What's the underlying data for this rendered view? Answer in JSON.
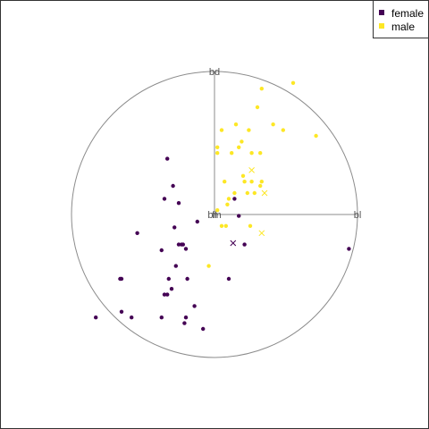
{
  "chart_data": {
    "type": "scatter",
    "subtype": "tour-projection",
    "title": "",
    "legend": {
      "placement": "top-right",
      "entries": [
        {
          "label": "female",
          "color": "#440154"
        },
        {
          "label": "male",
          "color": "#FDE725"
        }
      ]
    },
    "axes": [
      {
        "label": "bd",
        "direction": [
          0,
          1
        ]
      },
      {
        "label": "bl",
        "direction": [
          1,
          0
        ]
      },
      {
        "label": "fl",
        "direction": [
          0,
          0
        ]
      },
      {
        "label": "bm",
        "direction": [
          0,
          0
        ]
      }
    ],
    "circle": true,
    "xlim": [
      -1,
      1
    ],
    "ylim": [
      -1,
      1
    ],
    "series": [
      {
        "name": "female",
        "color": "#440154",
        "points": [
          [
            -0.33,
            0.39
          ],
          [
            -0.29,
            0.2
          ],
          [
            -0.35,
            0.11
          ],
          [
            -0.25,
            0.08
          ],
          [
            0.14,
            0.11
          ],
          [
            0.17,
            -0.01
          ],
          [
            -0.12,
            -0.05
          ],
          [
            -0.28,
            -0.09
          ],
          [
            -0.54,
            -0.13
          ],
          [
            -0.22,
            -0.21
          ],
          [
            -0.23,
            -0.21
          ],
          [
            -0.25,
            -0.21
          ],
          [
            -0.2,
            -0.24
          ],
          [
            -0.37,
            -0.25
          ],
          [
            0.21,
            -0.21
          ],
          [
            0.94,
            -0.24
          ],
          [
            -0.27,
            -0.36
          ],
          [
            -0.65,
            -0.45
          ],
          [
            -0.66,
            -0.45
          ],
          [
            -0.32,
            -0.45
          ],
          [
            -0.19,
            -0.45
          ],
          [
            0.1,
            -0.45
          ],
          [
            -0.3,
            -0.52
          ],
          [
            -0.33,
            -0.56
          ],
          [
            -0.35,
            -0.56
          ],
          [
            -0.14,
            -0.64
          ],
          [
            -0.65,
            -0.68
          ],
          [
            -0.58,
            -0.72
          ],
          [
            -0.37,
            -0.72
          ],
          [
            -0.2,
            -0.72
          ],
          [
            -0.83,
            -0.72
          ],
          [
            -0.21,
            -0.76
          ],
          [
            -0.08,
            -0.8
          ]
        ]
      },
      {
        "name": "male",
        "color": "#FDE725",
        "points": [
          [
            0.55,
            0.92
          ],
          [
            0.33,
            0.88
          ],
          [
            0.3,
            0.75
          ],
          [
            0.15,
            0.63
          ],
          [
            0.41,
            0.63
          ],
          [
            0.48,
            0.59
          ],
          [
            0.05,
            0.59
          ],
          [
            0.24,
            0.59
          ],
          [
            0.71,
            0.55
          ],
          [
            0.19,
            0.51
          ],
          [
            0.02,
            0.47
          ],
          [
            0.17,
            0.47
          ],
          [
            0.02,
            0.43
          ],
          [
            0.12,
            0.43
          ],
          [
            0.26,
            0.43
          ],
          [
            0.32,
            0.43
          ],
          [
            0.2,
            0.27
          ],
          [
            0.07,
            0.23
          ],
          [
            0.21,
            0.23
          ],
          [
            0.26,
            0.23
          ],
          [
            0.33,
            0.23
          ],
          [
            0.32,
            0.2
          ],
          [
            0.14,
            0.15
          ],
          [
            0.23,
            0.15
          ],
          [
            0.28,
            0.15
          ],
          [
            0.1,
            0.11
          ],
          [
            0.09,
            0.07
          ],
          [
            0.02,
            0.03
          ],
          [
            0.05,
            -0.08
          ],
          [
            0.08,
            -0.08
          ],
          [
            0.25,
            -0.08
          ],
          [
            -0.04,
            -0.36
          ]
        ]
      }
    ],
    "centroids": [
      {
        "name": "female",
        "color": "#440154",
        "point": [
          0.13,
          -0.2
        ]
      },
      {
        "name": "male",
        "color": "#FDE725",
        "point": [
          0.26,
          0.31
        ]
      },
      {
        "name": "male",
        "color": "#FDE725",
        "point": [
          0.35,
          0.15
        ]
      },
      {
        "name": "male",
        "color": "#FDE725",
        "point": [
          0.33,
          -0.13
        ]
      }
    ]
  }
}
